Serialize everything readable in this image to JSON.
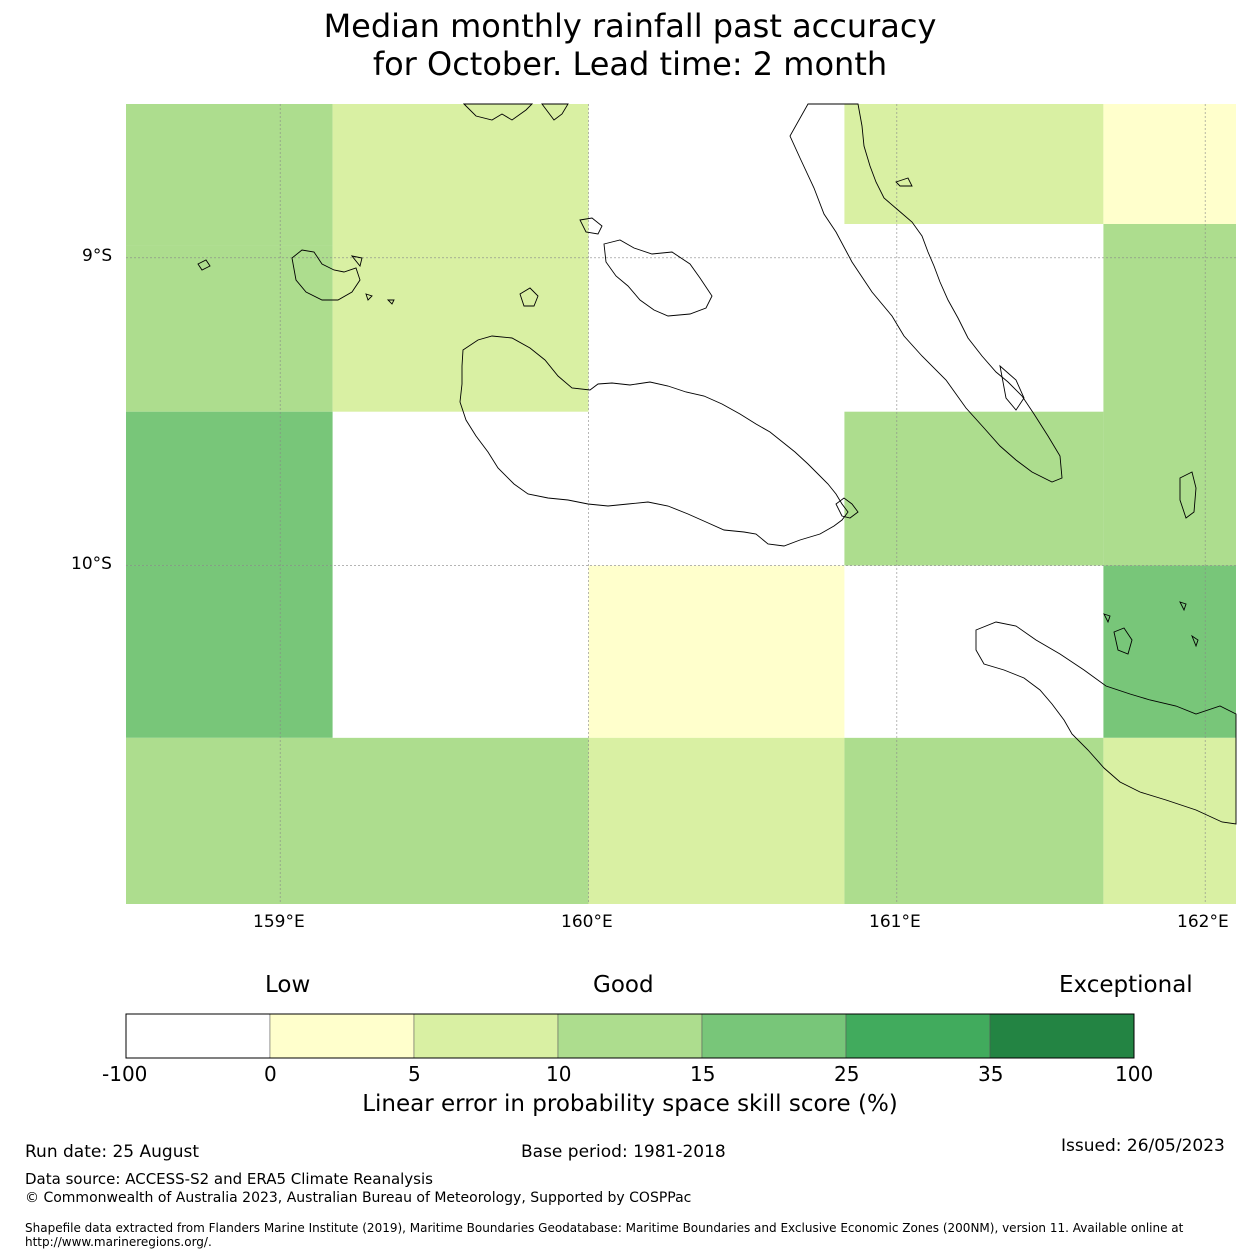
{
  "title": {
    "line1": "Median monthly rainfall past accuracy",
    "line2": "for October. Lead time: 2 month"
  },
  "map": {
    "lat_labels": [
      "9°S",
      "10°S"
    ],
    "lon_labels": [
      "159°E",
      "160°E",
      "161°E",
      "162°E"
    ],
    "extent": {
      "lon_min": 158.5,
      "lon_max": 162.1,
      "lat_min": -11.1,
      "lat_max": -8.5
    },
    "grid_cells": [
      {
        "lon_start": 158.5,
        "lon_end": 159.17,
        "lat_top": -8.5,
        "lat_bottom": -8.96,
        "class": "10-15"
      },
      {
        "lon_start": 158.5,
        "lon_end": 159.17,
        "lat_top": -8.96,
        "lat_bottom": -9.5,
        "class": "10-15"
      },
      {
        "lon_start": 158.5,
        "lon_end": 159.17,
        "lat_top": -9.5,
        "lat_bottom": -10.0,
        "class": "15-25"
      },
      {
        "lon_start": 158.5,
        "lon_end": 159.17,
        "lat_top": -10.0,
        "lat_bottom": -10.56,
        "class": "15-25"
      },
      {
        "lon_start": 158.5,
        "lon_end": 160.0,
        "lat_top": -10.56,
        "lat_bottom": -11.1,
        "class": "10-15"
      },
      {
        "lon_start": 159.17,
        "lon_end": 160.0,
        "lat_top": -8.5,
        "lat_bottom": -9.5,
        "class": "5-10"
      },
      {
        "lon_start": 160.0,
        "lon_end": 160.83,
        "lat_top": -10.0,
        "lat_bottom": -10.56,
        "class": "0-5"
      },
      {
        "lon_start": 160.0,
        "lon_end": 160.83,
        "lat_top": -10.56,
        "lat_bottom": -11.1,
        "class": "5-10"
      },
      {
        "lon_start": 160.83,
        "lon_end": 161.67,
        "lat_top": -8.5,
        "lat_bottom": -8.89,
        "class": "5-10"
      },
      {
        "lon_start": 160.83,
        "lon_end": 161.67,
        "lat_top": -9.5,
        "lat_bottom": -10.0,
        "class": "10-15"
      },
      {
        "lon_start": 160.83,
        "lon_end": 161.67,
        "lat_top": -10.56,
        "lat_bottom": -11.1,
        "class": "10-15"
      },
      {
        "lon_start": 161.67,
        "lon_end": 162.1,
        "lat_top": -8.5,
        "lat_bottom": -8.89,
        "class": "0-5"
      },
      {
        "lon_start": 161.67,
        "lon_end": 162.1,
        "lat_top": -8.89,
        "lat_bottom": -10.0,
        "class": "10-15"
      },
      {
        "lon_start": 161.67,
        "lon_end": 162.1,
        "lat_top": -10.0,
        "lat_bottom": -10.56,
        "class": "15-25"
      },
      {
        "lon_start": 161.67,
        "lon_end": 162.1,
        "lat_top": -10.56,
        "lat_bottom": -11.1,
        "class": "5-10"
      }
    ]
  },
  "colorbar": {
    "words": {
      "low": "Low",
      "good": "Good",
      "exceptional": "Exceptional"
    },
    "ticks": [
      "-100",
      "0",
      "5",
      "10",
      "15",
      "25",
      "35",
      "100"
    ],
    "classes": [
      {
        "id": "-100-0",
        "color": "#ffffff"
      },
      {
        "id": "0-5",
        "color": "#ffffcc"
      },
      {
        "id": "5-10",
        "color": "#d9f0a3"
      },
      {
        "id": "10-15",
        "color": "#addd8e"
      },
      {
        "id": "15-25",
        "color": "#78c679"
      },
      {
        "id": "25-35",
        "color": "#41ab5d"
      },
      {
        "id": "35-100",
        "color": "#238443"
      }
    ],
    "label": "Linear error in probability space skill score (%)"
  },
  "footer": {
    "run_date": "Run date: 25 August",
    "base_period": "Base period: 1981-2018",
    "issued": "Issued: 26/05/2023",
    "data_source": "Data source: ACCESS-S2 and ERA5 Climate Reanalysis",
    "copyright": "© Commonwealth of Australia 2023, Australian Bureau of Meteorology, Supported by COSPPac",
    "shapefile_line1": "Shapefile data extracted from Flanders Marine Institute (2019), Maritime Boundaries Geodatabase: Maritime Boundaries and Exclusive Economic Zones (200NM), version 11. Available online at",
    "shapefile_line2": "http://www.marineregions.org/."
  }
}
